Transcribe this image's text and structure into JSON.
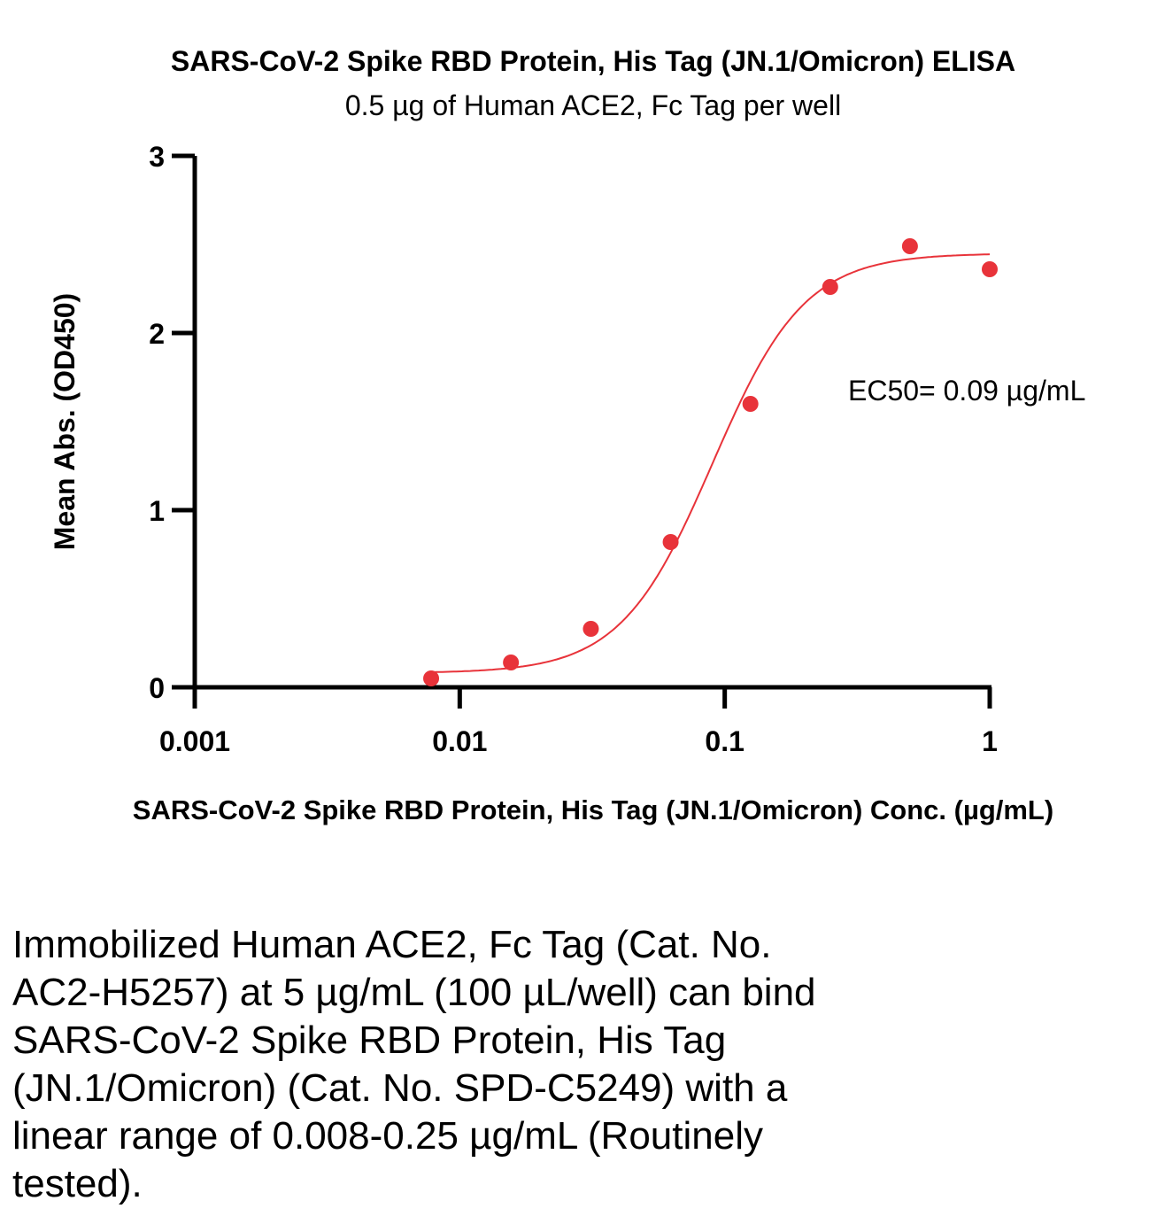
{
  "chart_data": {
    "type": "scatter",
    "title": "SARS-CoV-2 Spike RBD Protein, His Tag (JN.1/Omicron) ELISA",
    "subtitle": "0.5 µg of Human ACE2, Fc Tag per well",
    "xlabel": "SARS-CoV-2 Spike RBD Protein, His Tag (JN.1/Omicron) Conc. (µg/mL)",
    "ylabel": "Mean Abs. (OD450)",
    "x_scale": "log",
    "xlim": [
      0.001,
      1
    ],
    "ylim": [
      0,
      3
    ],
    "x_ticks": [
      {
        "value": 0.001,
        "label": "0.001"
      },
      {
        "value": 0.01,
        "label": "0.01"
      },
      {
        "value": 0.1,
        "label": "0.1"
      },
      {
        "value": 1,
        "label": "1"
      }
    ],
    "y_ticks": [
      {
        "value": 0,
        "label": "0"
      },
      {
        "value": 1,
        "label": "1"
      },
      {
        "value": 2,
        "label": "2"
      },
      {
        "value": 3,
        "label": "3"
      }
    ],
    "series": [
      {
        "color": "#e8333a",
        "x": [
          0.0078,
          0.0156,
          0.03125,
          0.0625,
          0.125,
          0.25,
          0.5,
          1
        ],
        "y": [
          0.05,
          0.14,
          0.33,
          0.82,
          1.6,
          2.26,
          2.49,
          2.36
        ],
        "fit": {
          "model": "4PL",
          "bottom": 0.08,
          "top": 2.45,
          "ec50": 0.09,
          "hill": 2.5
        }
      }
    ],
    "annotation": "EC50= 0.09 µg/mL",
    "grid": false
  },
  "caption": {
    "lines": [
      "Immobilized Human ACE2, Fc Tag (Cat. No.",
      "AC2-H5257) at 5 µg/mL (100 µL/well) can bind",
      "SARS-CoV-2 Spike RBD Protein, His Tag",
      "(JN.1/Omicron) (Cat. No. SPD-C5249) with a",
      "linear range of 0.008-0.25 µg/mL (Routinely",
      "tested)."
    ]
  }
}
